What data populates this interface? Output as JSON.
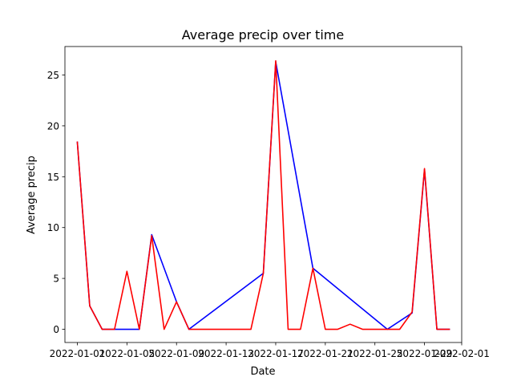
{
  "chart_data": {
    "type": "line",
    "title": "Average precip over time",
    "xlabel": "Date",
    "ylabel": "Average precip",
    "xlim": [
      "2021-12-31",
      "2022-02-01"
    ],
    "ylim": [
      -1.3,
      27.8
    ],
    "grid": false,
    "x_ticks": [
      "2022-01-01",
      "2022-01-05",
      "2022-01-09",
      "2022-01-13",
      "2022-01-17",
      "2022-01-21",
      "2022-01-25",
      "2022-01-29",
      "2022-02-01"
    ],
    "y_ticks": [
      0,
      5,
      10,
      15,
      20,
      25
    ],
    "series": [
      {
        "color": "#0000ff",
        "points": [
          [
            "2022-01-01",
            18.4
          ],
          [
            "2022-01-02",
            2.3
          ],
          [
            "2022-01-03",
            0
          ],
          [
            "2022-01-06",
            0
          ],
          [
            "2022-01-07",
            9.3
          ],
          [
            "2022-01-09",
            2.7
          ],
          [
            "2022-01-10",
            0
          ],
          [
            "2022-01-16",
            5.5
          ],
          [
            "2022-01-17",
            26.3
          ],
          [
            "2022-01-20",
            6.0
          ],
          [
            "2022-01-26",
            0
          ],
          [
            "2022-01-28",
            1.6
          ],
          [
            "2022-01-29",
            15.7
          ],
          [
            "2022-01-30",
            0
          ],
          [
            "2022-01-31",
            0
          ]
        ]
      },
      {
        "color": "#ff0000",
        "points": [
          [
            "2022-01-01",
            18.4
          ],
          [
            "2022-01-02",
            2.3
          ],
          [
            "2022-01-03",
            0
          ],
          [
            "2022-01-04",
            0
          ],
          [
            "2022-01-05",
            5.7
          ],
          [
            "2022-01-06",
            0
          ],
          [
            "2022-01-07",
            9.2
          ],
          [
            "2022-01-08",
            0
          ],
          [
            "2022-01-09",
            2.7
          ],
          [
            "2022-01-10",
            0
          ],
          [
            "2022-01-11",
            0
          ],
          [
            "2022-01-12",
            0
          ],
          [
            "2022-01-13",
            0
          ],
          [
            "2022-01-14",
            0
          ],
          [
            "2022-01-15",
            0
          ],
          [
            "2022-01-16",
            5.5
          ],
          [
            "2022-01-17",
            26.4
          ],
          [
            "2022-01-18",
            0
          ],
          [
            "2022-01-19",
            0
          ],
          [
            "2022-01-20",
            6.0
          ],
          [
            "2022-01-21",
            0
          ],
          [
            "2022-01-22",
            0
          ],
          [
            "2022-01-23",
            0.5
          ],
          [
            "2022-01-24",
            0
          ],
          [
            "2022-01-25",
            0
          ],
          [
            "2022-01-26",
            0
          ],
          [
            "2022-01-27",
            0
          ],
          [
            "2022-01-28",
            1.7
          ],
          [
            "2022-01-29",
            15.8
          ],
          [
            "2022-01-30",
            0
          ],
          [
            "2022-01-31",
            0
          ]
        ]
      }
    ]
  }
}
